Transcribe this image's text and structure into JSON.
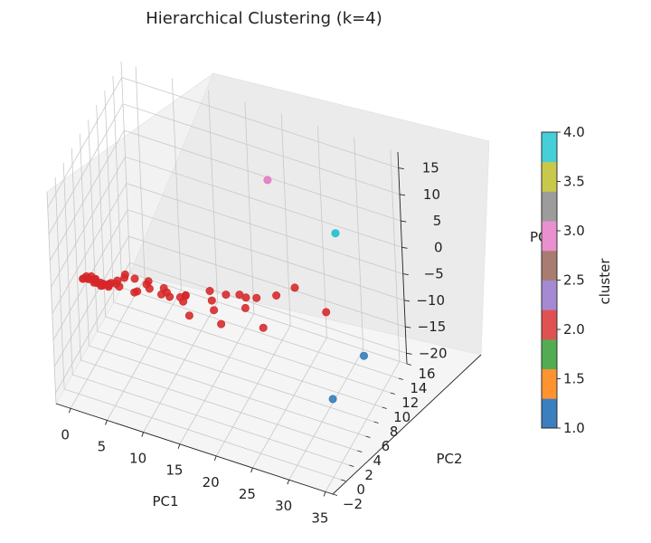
{
  "chart_data": {
    "type": "scatter",
    "projection": "3d",
    "title": "Hierarchical Clustering (k=4)",
    "xlabel": "PC1",
    "ylabel": "PC2",
    "zlabel": "PC3",
    "xlim": [
      -2,
      36
    ],
    "ylim": [
      -2,
      16
    ],
    "zlim": [
      -22,
      18
    ],
    "xticks": [
      0,
      5,
      10,
      15,
      20,
      25,
      30,
      35
    ],
    "yticks": [
      -2,
      0,
      2,
      4,
      6,
      8,
      10,
      12,
      14,
      16
    ],
    "zticks": [
      -20,
      -15,
      -10,
      -5,
      0,
      5,
      10,
      15
    ],
    "grid": true,
    "colorbar": {
      "label": "cluster",
      "range": [
        1.0,
        4.0
      ],
      "ticks": [
        "1.0",
        "1.5",
        "2.0",
        "2.5",
        "3.0",
        "3.5",
        "4.0"
      ],
      "colors": [
        "#3b7fbf",
        "#ff9330",
        "#52ad52",
        "#e05252",
        "#a58ad3",
        "#a97c72",
        "#e990cf",
        "#9c9c9c",
        "#c8c84a",
        "#45cfd8"
      ]
    },
    "series": [
      {
        "cluster": 1,
        "color": "#2f7ab9",
        "points": [
          [
            33.5,
            3,
            -12
          ],
          [
            35,
            8,
            -10
          ]
        ]
      },
      {
        "cluster": 2,
        "color": "#d62728",
        "points": [
          [
            0,
            2,
            -3
          ],
          [
            0.5,
            2.5,
            -3.5
          ],
          [
            1,
            3,
            -4
          ],
          [
            1.5,
            2.2,
            -3
          ],
          [
            2,
            2.8,
            -4.5
          ],
          [
            0.3,
            1.8,
            -2.5
          ],
          [
            0.8,
            3.2,
            -5
          ],
          [
            1.2,
            2,
            -2
          ],
          [
            1.8,
            3.5,
            -5.5
          ],
          [
            2.5,
            2.5,
            -3.5
          ],
          [
            3,
            3,
            -4
          ],
          [
            3.5,
            2,
            -2.5
          ],
          [
            2.2,
            1.5,
            -2
          ],
          [
            1.6,
            4,
            -6
          ],
          [
            0.6,
            4.2,
            -6.5
          ],
          [
            1,
            1.2,
            -1
          ],
          [
            2.8,
            3.8,
            -5
          ],
          [
            0.2,
            3,
            -4.2
          ],
          [
            1.4,
            2.6,
            -3.2
          ],
          [
            2.4,
            2.1,
            -2.8
          ],
          [
            3.2,
            2.6,
            -3.6
          ],
          [
            4,
            3,
            -3.5
          ],
          [
            4.5,
            2.5,
            -2
          ],
          [
            3.8,
            4,
            -5.5
          ],
          [
            2,
            4.5,
            -7
          ],
          [
            5,
            3.5,
            -2
          ],
          [
            5.5,
            2.5,
            -1
          ],
          [
            6,
            4,
            -3
          ],
          [
            6.5,
            3,
            -4
          ],
          [
            7,
            5,
            -5
          ],
          [
            7.5,
            2,
            -2
          ],
          [
            8,
            4,
            -4
          ],
          [
            8.5,
            3,
            -1
          ],
          [
            9,
            5,
            -6
          ],
          [
            10,
            4,
            -3
          ],
          [
            11,
            3,
            -2
          ],
          [
            11,
            6,
            -7
          ],
          [
            12,
            2,
            -1
          ],
          [
            12,
            5,
            -6
          ],
          [
            13,
            4,
            -3
          ],
          [
            14,
            3,
            -5
          ],
          [
            14.5,
            1.5,
            1
          ],
          [
            15,
            7,
            -9
          ],
          [
            16,
            5,
            -4
          ],
          [
            17,
            3,
            1
          ],
          [
            18,
            5,
            -2
          ],
          [
            19,
            2,
            -3
          ],
          [
            20,
            6,
            -5
          ],
          [
            20.5,
            4,
            0.5
          ],
          [
            21,
            7,
            -4
          ],
          [
            22,
            3,
            2
          ],
          [
            23,
            5,
            -6
          ],
          [
            25,
            5,
            1
          ],
          [
            27,
            6,
            2
          ],
          [
            30,
            8,
            -4
          ]
        ]
      },
      {
        "cluster": 3,
        "color": "#e377c2",
        "points": [
          [
            22,
            9,
            16
          ]
        ]
      },
      {
        "cluster": 4,
        "color": "#17becf",
        "points": [
          [
            33,
            6,
            15
          ]
        ]
      }
    ]
  }
}
